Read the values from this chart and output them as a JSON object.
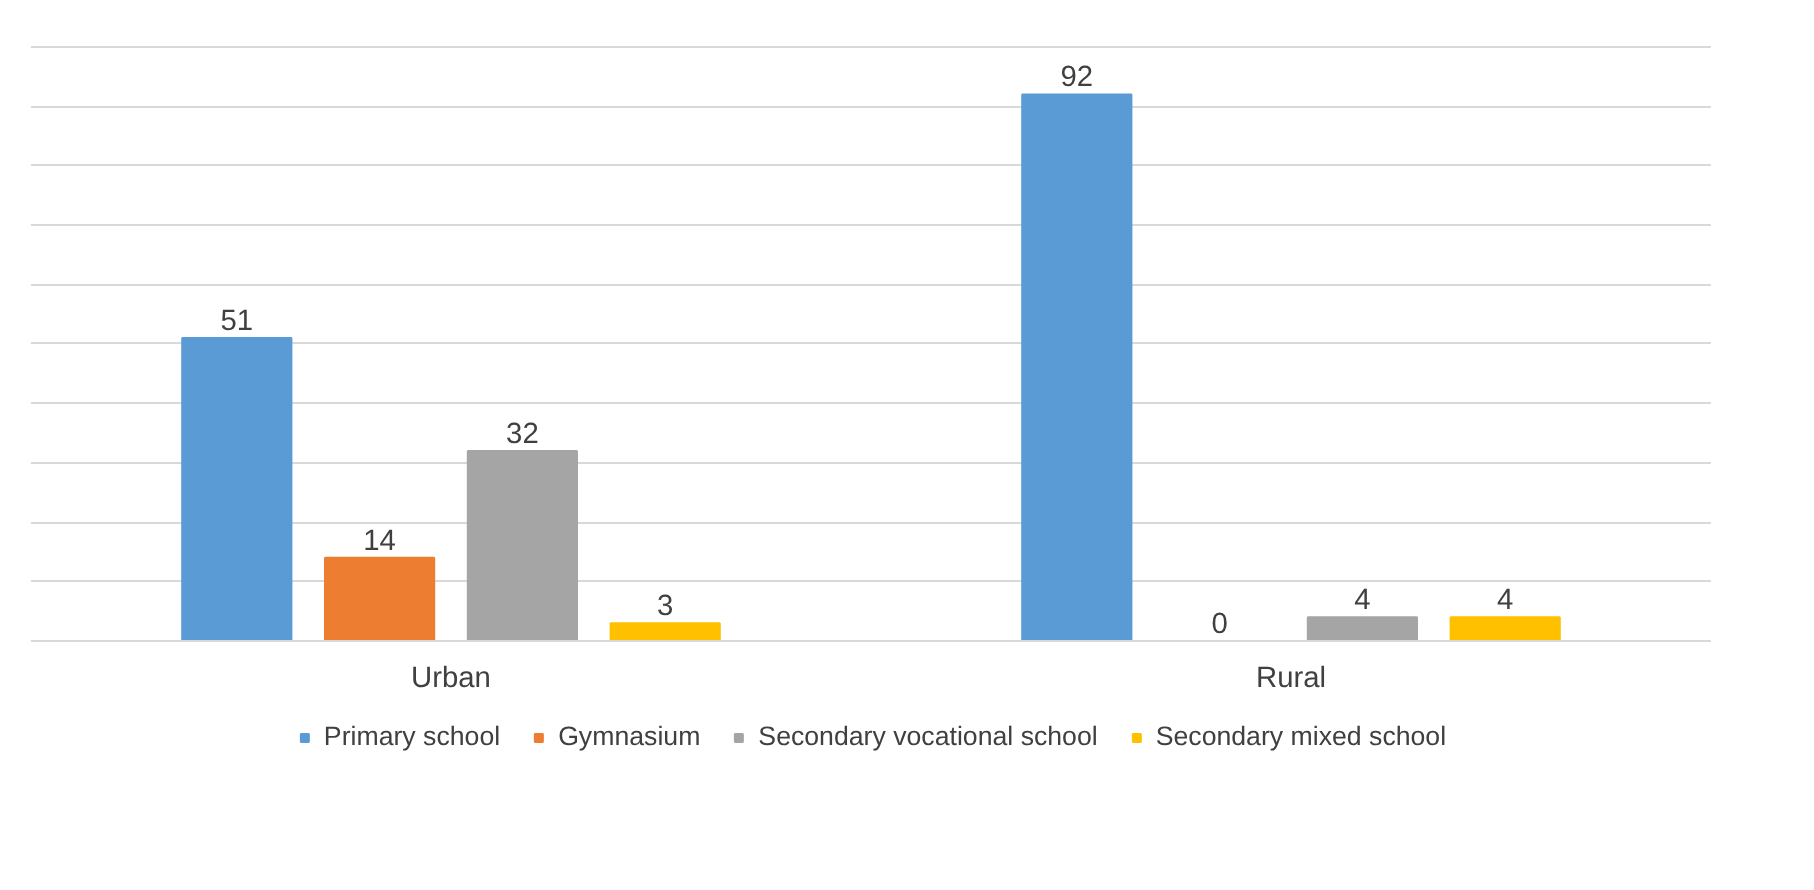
{
  "chart_data": {
    "type": "bar",
    "categories": [
      "Urban",
      "Rural"
    ],
    "series": [
      {
        "name": "Primary school",
        "color": "#5b9bd5",
        "values": [
          51,
          92
        ]
      },
      {
        "name": "Gymnasium",
        "color": "#ed7d31",
        "values": [
          14,
          0
        ]
      },
      {
        "name": "Secondary vocational school",
        "color": "#a5a5a5",
        "values": [
          32,
          4
        ]
      },
      {
        "name": "Secondary mixed school",
        "color": "#ffc000",
        "values": [
          3,
          4
        ]
      }
    ],
    "yticks": [
      {
        "value": 0,
        "label": null
      },
      {
        "value": 10,
        "label": null
      },
      {
        "value": 20,
        "label": null
      },
      {
        "value": 30,
        "label": null
      },
      {
        "value": 40,
        "label": null
      },
      {
        "value": 50,
        "label": null
      },
      {
        "value": 60,
        "label": null
      },
      {
        "value": 70,
        "label": null
      },
      {
        "value": 80,
        "label": null
      },
      {
        "value": 90,
        "label": null
      },
      {
        "value": 100,
        "label": null
      }
    ],
    "tick_labels": "x",
    "grid": "y",
    "data_labels": true,
    "legend": "bottom"
  }
}
